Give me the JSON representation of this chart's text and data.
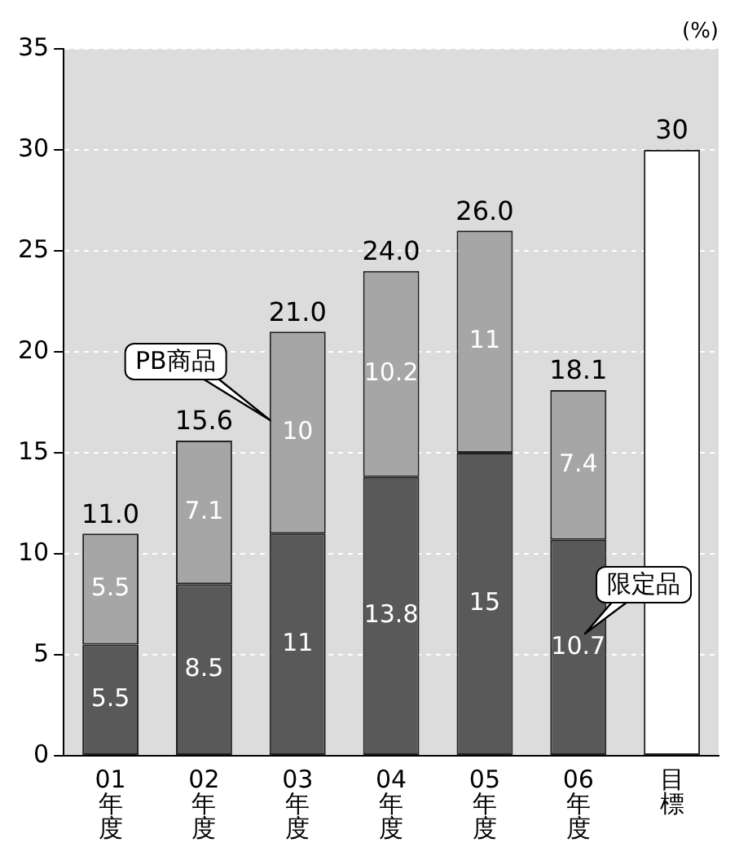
{
  "chart_data": {
    "type": "bar",
    "stacked": true,
    "ylabel": "(%)",
    "categories": [
      "01年度",
      "02年度",
      "03年度",
      "04年度",
      "05年度",
      "06年度",
      "目標"
    ],
    "series": [
      {
        "name": "限定品",
        "color": "#595959",
        "values": [
          5.5,
          8.5,
          11,
          13.8,
          15,
          10.7,
          null
        ],
        "value_labels": [
          "5.5",
          "8.5",
          "11",
          "13.8",
          "15",
          "10.7",
          null
        ]
      },
      {
        "name": "PB商品",
        "color": "#a6a6a6",
        "values": [
          5.5,
          7.1,
          10,
          10.2,
          11,
          7.4,
          null
        ],
        "value_labels": [
          "5.5",
          "7.1",
          "10",
          "10.2",
          "11",
          "7.4",
          null
        ]
      },
      {
        "color": "#ffffff",
        "values": [
          null,
          null,
          null,
          null,
          null,
          null,
          30
        ]
      }
    ],
    "totals": [
      "11.0",
      "15.6",
      "21.0",
      "24.0",
      "26.0",
      "18.1",
      "30"
    ],
    "ylim": [
      0,
      35
    ],
    "yticks": [
      0,
      5,
      10,
      15,
      20,
      25,
      30,
      35
    ],
    "grid": "y",
    "legend": false
  }
}
